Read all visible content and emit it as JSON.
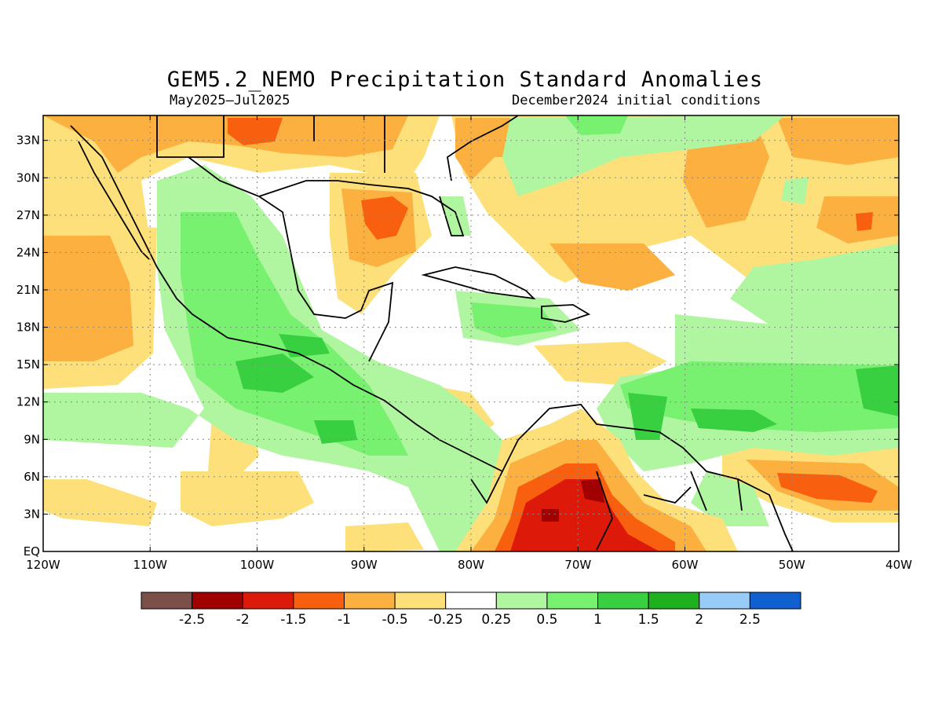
{
  "title": "GEM5.2_NEMO Precipitation Standard Anomalies",
  "period": "May2025–Jul2025",
  "init": "December2024 initial conditions",
  "lat_ticks": [
    "33N",
    "30N",
    "27N",
    "24N",
    "21N",
    "18N",
    "15N",
    "12N",
    "9N",
    "6N",
    "3N",
    "EQ"
  ],
  "lat_values": [
    33,
    30,
    27,
    24,
    21,
    18,
    15,
    12,
    9,
    6,
    3,
    0
  ],
  "lon_ticks": [
    "120W",
    "110W",
    "100W",
    "90W",
    "80W",
    "70W",
    "60W",
    "50W",
    "40W"
  ],
  "lon_values": [
    -120,
    -110,
    -100,
    -90,
    -80,
    -70,
    -60,
    -50,
    -40
  ],
  "map_extent": {
    "lon_min": -120,
    "lon_max": -40,
    "lat_min": 0,
    "lat_max": 35
  },
  "colorbar": {
    "labels": [
      "-2.5",
      "-2",
      "-1.5",
      "-1",
      "-0.5",
      "-0.25",
      "0.25",
      "0.5",
      "1",
      "1.5",
      "2",
      "2.5"
    ],
    "colors": [
      "#7a5048",
      "#a00000",
      "#dd1a0a",
      "#f86010",
      "#fbb040",
      "#fde07a",
      "#ffffff",
      "#b0f5a0",
      "#78f070",
      "#38d040",
      "#1fb020",
      "#98ccf8",
      "#1060d0"
    ]
  }
}
